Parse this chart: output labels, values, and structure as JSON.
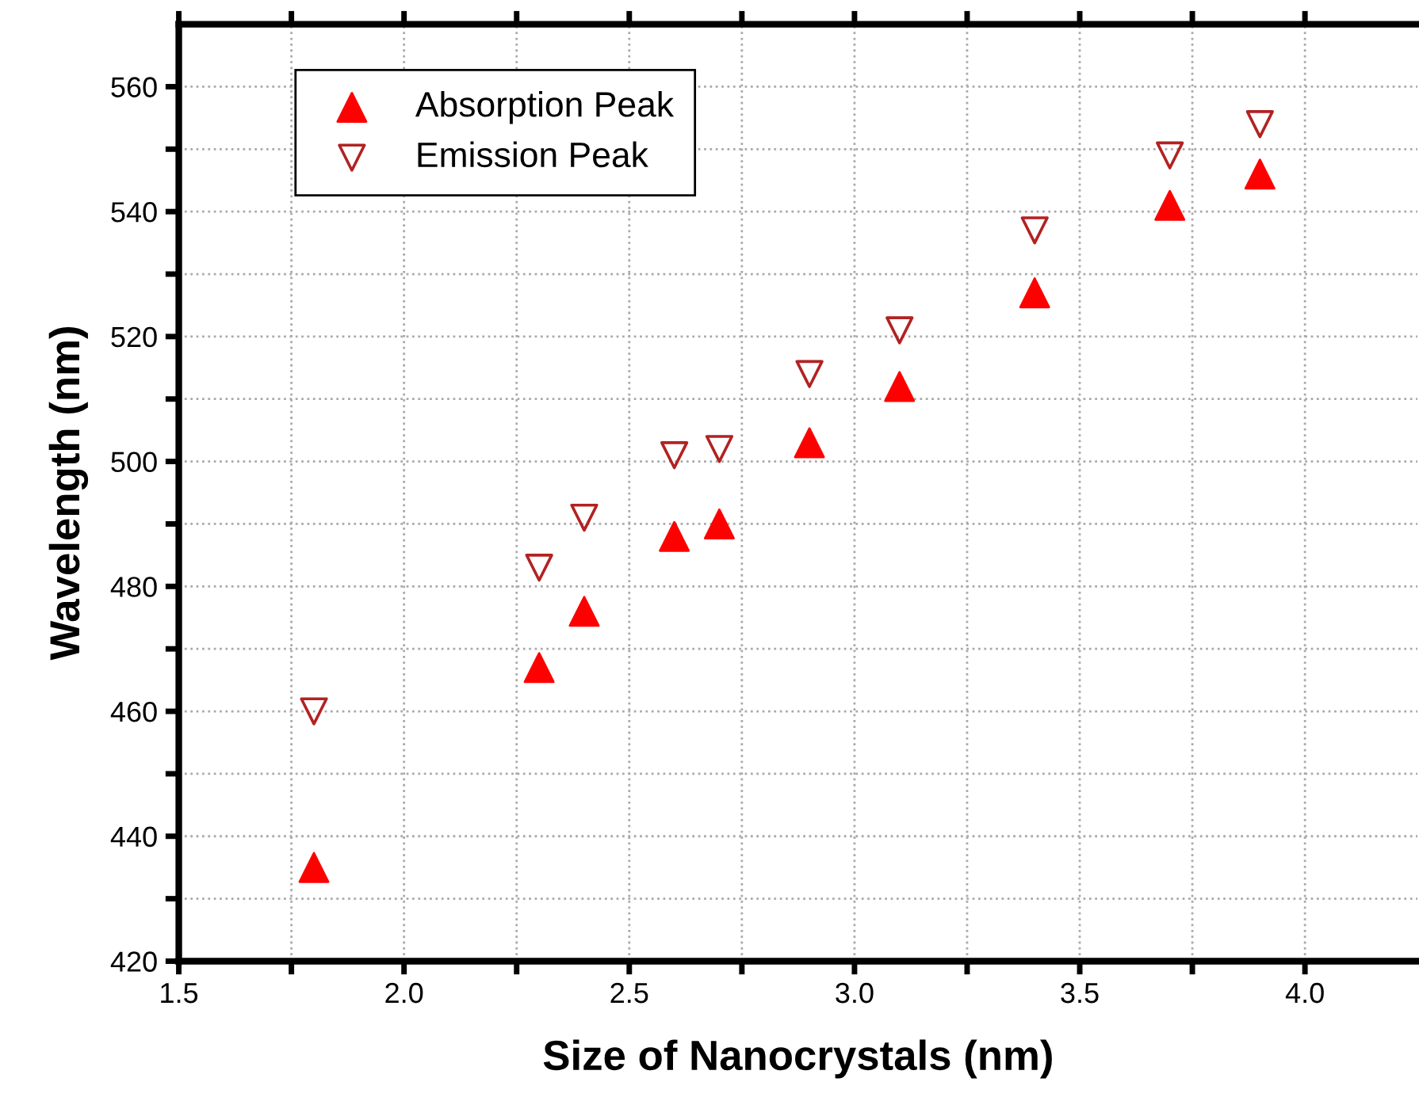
{
  "chart_data": {
    "type": "scatter",
    "xlabel": "Size of Nanocrystals (nm)",
    "ylabel": "Wavelength (nm)",
    "x": [
      1.8,
      2.3,
      2.4,
      2.6,
      2.7,
      2.9,
      3.1,
      3.4,
      3.7,
      3.9
    ],
    "series": [
      {
        "name": "Absorption Peak",
        "color": "#ff0000",
        "marker": "triangle",
        "values": [
          435,
          467,
          476,
          488,
          490,
          503,
          512,
          527,
          541,
          546
        ]
      },
      {
        "name": "Emission Peak",
        "color": "#b22222",
        "marker": "triangle-down-open",
        "values": [
          460,
          483,
          491,
          501,
          502,
          514,
          521,
          537,
          549,
          554
        ]
      }
    ],
    "xlim": [
      1.5,
      4.25
    ],
    "ylim": [
      420,
      570
    ],
    "xticks": [
      {
        "value": 1.5,
        "label": "1.5"
      },
      {
        "value": 1.75,
        "label": null
      },
      {
        "value": 2.0,
        "label": "2.0"
      },
      {
        "value": 2.25,
        "label": null
      },
      {
        "value": 2.5,
        "label": "2.5"
      },
      {
        "value": 2.75,
        "label": null
      },
      {
        "value": 3.0,
        "label": "3.0"
      },
      {
        "value": 3.25,
        "label": null
      },
      {
        "value": 3.5,
        "label": "3.5"
      },
      {
        "value": 3.75,
        "label": null
      },
      {
        "value": 4.0,
        "label": "4.0"
      }
    ],
    "yticks": [
      420,
      {
        "value": 430,
        "label": null
      },
      440,
      {
        "value": 450,
        "label": null
      },
      460,
      {
        "value": 470,
        "label": null
      },
      480,
      {
        "value": 490,
        "label": null
      },
      500,
      {
        "value": 510,
        "label": null
      },
      520,
      {
        "value": 530,
        "label": null
      },
      540,
      {
        "value": 550,
        "label": null
      },
      560
    ],
    "grid": true,
    "legend": "top left"
  }
}
